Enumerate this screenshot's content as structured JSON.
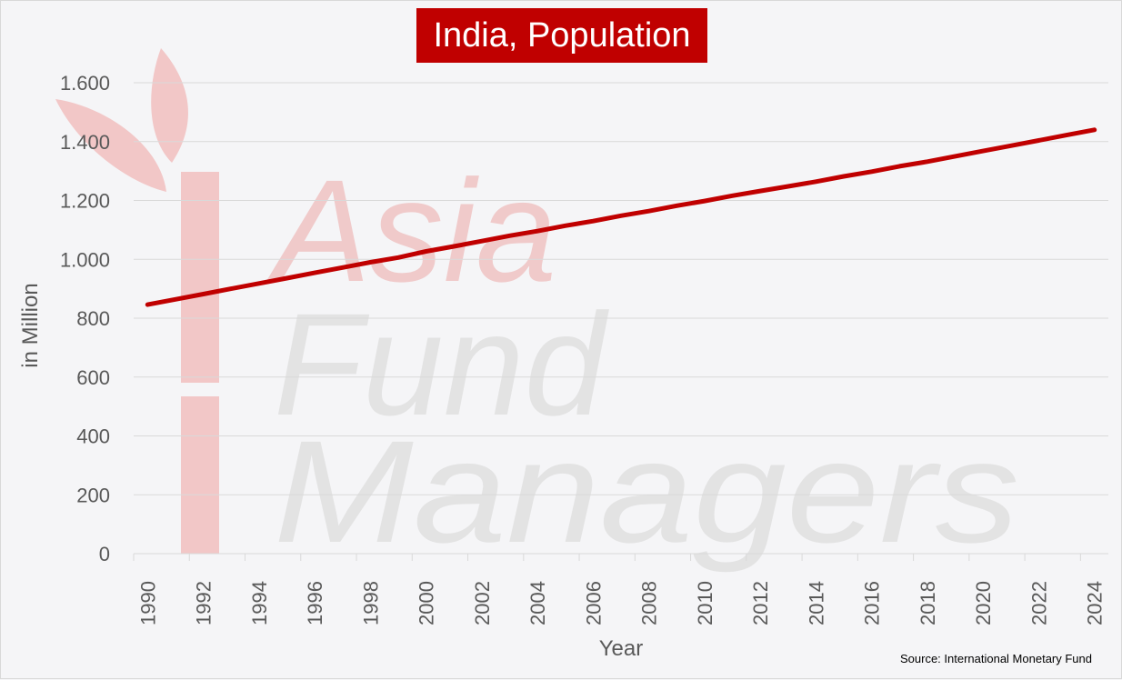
{
  "chart_data": {
    "type": "line",
    "title": "India, Population",
    "xlabel": "Year",
    "ylabel": "in Million",
    "ylim": [
      0,
      1600
    ],
    "yticks": [
      0,
      200,
      400,
      600,
      800,
      1000,
      1200,
      1400,
      1600
    ],
    "ytick_labels": [
      "0",
      "200",
      "400",
      "600",
      "800",
      "1.000",
      "1.200",
      "1.400",
      "1.600"
    ],
    "xtick_labels": [
      "1990",
      "1992",
      "1994",
      "1996",
      "1998",
      "2000",
      "2002",
      "2004",
      "2006",
      "2008",
      "2010",
      "2012",
      "2014",
      "2016",
      "2018",
      "2020",
      "2022",
      "2024"
    ],
    "grid": true,
    "x": [
      1990,
      1991,
      1992,
      1993,
      1994,
      1995,
      1996,
      1997,
      1998,
      1999,
      2000,
      2001,
      2002,
      2003,
      2004,
      2005,
      2006,
      2007,
      2008,
      2009,
      2010,
      2011,
      2012,
      2013,
      2014,
      2015,
      2016,
      2017,
      2018,
      2019,
      2020,
      2021,
      2022,
      2023,
      2024
    ],
    "series": [
      {
        "color": "#c00000",
        "values": [
          846,
          864,
          882,
          900,
          918,
          936,
          954,
          972,
          990,
          1006,
          1027,
          1044,
          1062,
          1080,
          1096,
          1114,
          1130,
          1148,
          1164,
          1182,
          1198,
          1216,
          1232,
          1248,
          1264,
          1282,
          1298,
          1316,
          1332,
          1350,
          1368,
          1386,
          1404,
          1422,
          1440
        ]
      }
    ],
    "source": "Source: International Monetary Fund"
  },
  "watermark": {
    "line1": "Asia",
    "line2": "Fund",
    "line3": "Managers",
    "accent_color": "#f2c7c7",
    "text_color": "#e3e3e3"
  },
  "colors": {
    "title_bg": "#c00000",
    "line": "#c00000",
    "grid": "#d9d9d9",
    "axis_text": "#595959"
  }
}
